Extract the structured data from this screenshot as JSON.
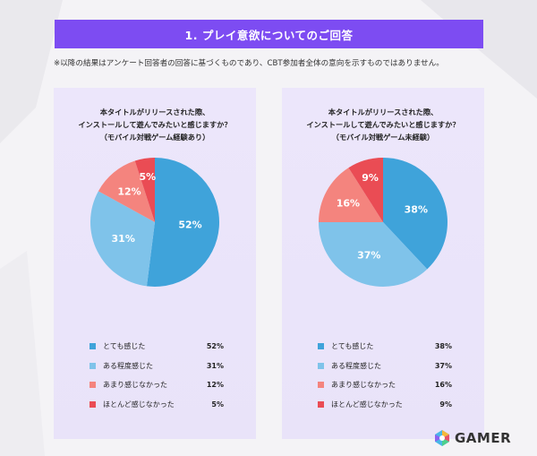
{
  "header": {
    "title": "1. プレイ意欲についてのご回答"
  },
  "note": "※以降の結果はアンケート回答者の回答に基づくものであり、CBT参加者全体の意向を示すものではありません。",
  "logo": {
    "text": "GAMER",
    "icon": "gamer-logo-icon"
  },
  "colors": {
    "header_bg": "#7d4cf2",
    "panel_bg": "#ece6fb",
    "series": [
      "#3fa3da",
      "#7fc3ea",
      "#f4847e",
      "#ea4c54"
    ]
  },
  "chart_data": [
    {
      "type": "pie",
      "title_lines": [
        "本タイトルがリリースされた際、",
        "インストールして遊んでみたいと感じますか？",
        "（モバイル対戦ゲーム経験あり）"
      ],
      "categories": [
        "とても感じた",
        "ある程度感じた",
        "あまり感じなかった",
        "ほとんど感じなかった"
      ],
      "values": [
        52,
        31,
        12,
        5
      ],
      "labels": [
        "52%",
        "31%",
        "12%",
        "5%"
      ],
      "legend_placement": "bottom"
    },
    {
      "type": "pie",
      "title_lines": [
        "本タイトルがリリースされた際、",
        "インストールして遊んでみたいと感じますか？",
        "（モバイル対戦ゲーム未経験）"
      ],
      "categories": [
        "とても感じた",
        "ある程度感じた",
        "あまり感じなかった",
        "ほとんど感じなかった"
      ],
      "values": [
        38,
        37,
        16,
        9
      ],
      "labels": [
        "38%",
        "37%",
        "16%",
        "9%"
      ],
      "legend_placement": "bottom"
    }
  ]
}
